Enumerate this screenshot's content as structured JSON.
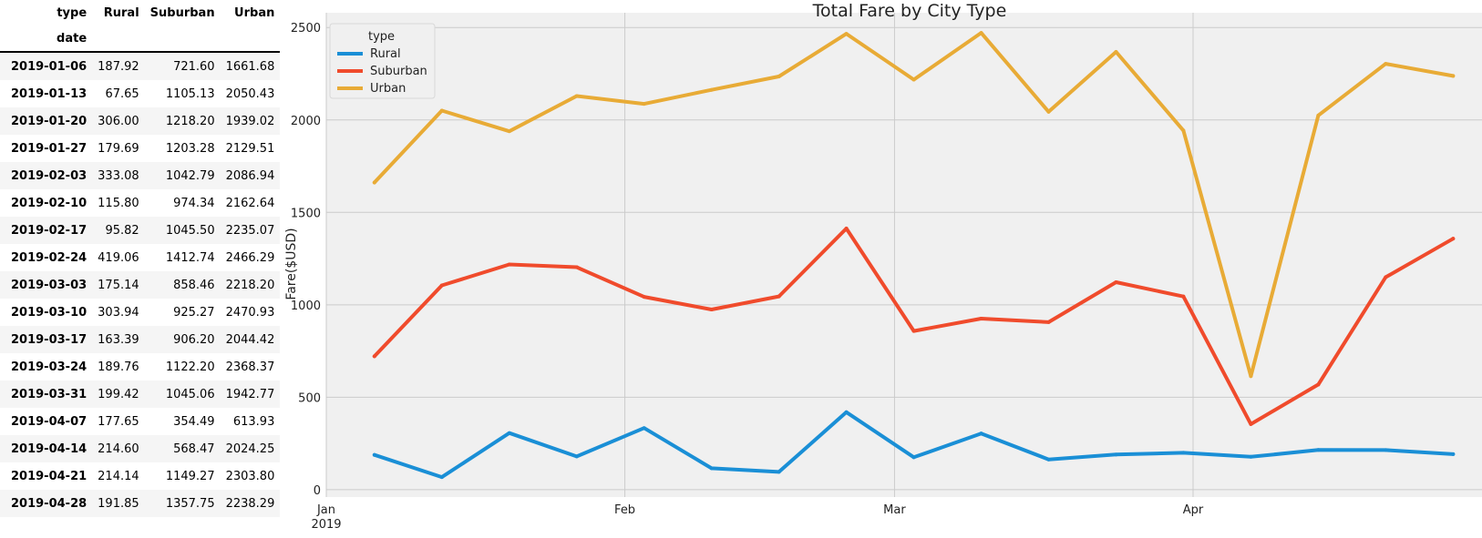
{
  "table": {
    "index_label": "type",
    "index_sublabel": "date",
    "columns": [
      "Rural",
      "Suburban",
      "Urban"
    ],
    "rows": [
      {
        "date": "2019-01-06",
        "values": [
          "187.92",
          "721.60",
          "1661.68"
        ]
      },
      {
        "date": "2019-01-13",
        "values": [
          "67.65",
          "1105.13",
          "2050.43"
        ]
      },
      {
        "date": "2019-01-20",
        "values": [
          "306.00",
          "1218.20",
          "1939.02"
        ]
      },
      {
        "date": "2019-01-27",
        "values": [
          "179.69",
          "1203.28",
          "2129.51"
        ]
      },
      {
        "date": "2019-02-03",
        "values": [
          "333.08",
          "1042.79",
          "2086.94"
        ]
      },
      {
        "date": "2019-02-10",
        "values": [
          "115.80",
          "974.34",
          "2162.64"
        ]
      },
      {
        "date": "2019-02-17",
        "values": [
          "95.82",
          "1045.50",
          "2235.07"
        ]
      },
      {
        "date": "2019-02-24",
        "values": [
          "419.06",
          "1412.74",
          "2466.29"
        ]
      },
      {
        "date": "2019-03-03",
        "values": [
          "175.14",
          "858.46",
          "2218.20"
        ]
      },
      {
        "date": "2019-03-10",
        "values": [
          "303.94",
          "925.27",
          "2470.93"
        ]
      },
      {
        "date": "2019-03-17",
        "values": [
          "163.39",
          "906.20",
          "2044.42"
        ]
      },
      {
        "date": "2019-03-24",
        "values": [
          "189.76",
          "1122.20",
          "2368.37"
        ]
      },
      {
        "date": "2019-03-31",
        "values": [
          "199.42",
          "1045.06",
          "1942.77"
        ]
      },
      {
        "date": "2019-04-07",
        "values": [
          "177.65",
          "354.49",
          "613.93"
        ]
      },
      {
        "date": "2019-04-14",
        "values": [
          "214.60",
          "568.47",
          "2024.25"
        ]
      },
      {
        "date": "2019-04-21",
        "values": [
          "214.14",
          "1149.27",
          "2303.80"
        ]
      },
      {
        "date": "2019-04-28",
        "values": [
          "191.85",
          "1357.75",
          "2238.29"
        ]
      }
    ]
  },
  "chart_data": {
    "type": "line",
    "title": "Total Fare by City Type",
    "xlabel": "",
    "ylabel": "Fare($USD)",
    "x_start": "2019-01-01",
    "x": [
      "2019-01-06",
      "2019-01-13",
      "2019-01-20",
      "2019-01-27",
      "2019-02-03",
      "2019-02-10",
      "2019-02-17",
      "2019-02-24",
      "2019-03-03",
      "2019-03-10",
      "2019-03-17",
      "2019-03-24",
      "2019-03-31",
      "2019-04-07",
      "2019-04-14",
      "2019-04-21",
      "2019-04-28"
    ],
    "x_ticks": [
      {
        "date": "2019-01-01",
        "label": "Jan",
        "sublabel": "2019"
      },
      {
        "date": "2019-02-01",
        "label": "Feb",
        "sublabel": ""
      },
      {
        "date": "2019-03-01",
        "label": "Mar",
        "sublabel": ""
      },
      {
        "date": "2019-04-01",
        "label": "Apr",
        "sublabel": ""
      }
    ],
    "y_ticks": [
      0,
      500,
      1000,
      1500,
      2000,
      2500
    ],
    "ylim": [
      -40,
      2580
    ],
    "xlim": [
      "2019-01-01",
      "2019-05-01"
    ],
    "grid": true,
    "legend": {
      "title": "type",
      "placement": "top-left"
    },
    "series": [
      {
        "name": "Rural",
        "color": "#1a8fd6",
        "values": [
          187.92,
          67.65,
          306.0,
          179.69,
          333.08,
          115.8,
          95.82,
          419.06,
          175.14,
          303.94,
          163.39,
          189.76,
          199.42,
          177.65,
          214.6,
          214.14,
          191.85
        ]
      },
      {
        "name": "Suburban",
        "color": "#f04b2c",
        "values": [
          721.6,
          1105.13,
          1218.2,
          1203.28,
          1042.79,
          974.34,
          1045.5,
          1412.74,
          858.46,
          925.27,
          906.2,
          1122.2,
          1045.06,
          354.49,
          568.47,
          1149.27,
          1357.75
        ]
      },
      {
        "name": "Urban",
        "color": "#e8ab36",
        "values": [
          1661.68,
          2050.43,
          1939.02,
          2129.51,
          2086.94,
          2162.64,
          2235.07,
          2466.29,
          2218.2,
          2470.93,
          2044.42,
          2368.37,
          1942.77,
          613.93,
          2024.25,
          2303.8,
          2238.29
        ]
      }
    ]
  }
}
